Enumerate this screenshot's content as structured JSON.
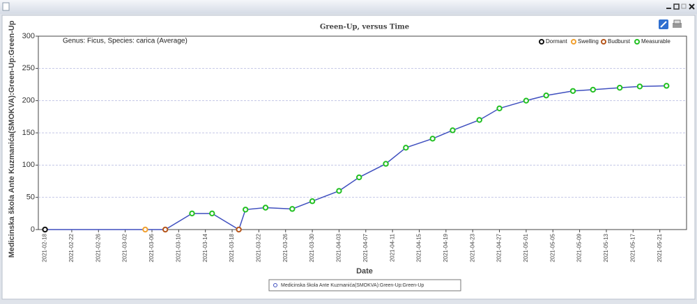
{
  "chart_data": {
    "type": "line",
    "title": "Green-Up, versus Time",
    "annotation": "Genus: Ficus, Species: carica (Average)",
    "x_label": "Date",
    "y_label": "Medicinska škola Ante Kuzmanića(SMOKVA):Green-Up:Green-Up",
    "phases": [
      {
        "name": "Dormant",
        "color": "#111111"
      },
      {
        "name": "Swelling",
        "color": "#f0a030"
      },
      {
        "name": "Budburst",
        "color": "#b5561c"
      },
      {
        "name": "Measurable",
        "color": "#22c022"
      }
    ],
    "x": [
      "2021-02-18",
      "2021-03-05",
      "2021-03-08",
      "2021-03-12",
      "2021-03-15",
      "2021-03-19",
      "2021-03-20",
      "2021-03-23",
      "2021-03-27",
      "2021-03-30",
      "2021-04-03",
      "2021-04-06",
      "2021-04-10",
      "2021-04-13",
      "2021-04-17",
      "2021-04-20",
      "2021-04-24",
      "2021-04-27",
      "2021-05-01",
      "2021-05-04",
      "2021-05-08",
      "2021-05-11",
      "2021-05-15",
      "2021-05-18",
      "2021-05-22"
    ],
    "point_phases": [
      "Dormant",
      "Swelling",
      "Budburst",
      "Measurable",
      "Measurable",
      "Budburst",
      "Measurable",
      "Measurable",
      "Measurable",
      "Measurable",
      "Measurable",
      "Measurable",
      "Measurable",
      "Measurable",
      "Measurable",
      "Measurable",
      "Measurable",
      "Measurable",
      "Measurable",
      "Measurable",
      "Measurable",
      "Measurable",
      "Measurable",
      "Measurable",
      "Measurable"
    ],
    "series": [
      {
        "name": "Medicinska škola Ante Kuzmanića(SMOKVA):Green-Up:Green-Up",
        "color": "#3f4fbf",
        "values": [
          0,
          0,
          0,
          25,
          25,
          0,
          31,
          34,
          32,
          44,
          60,
          81,
          102,
          127,
          141,
          154,
          170,
          188,
          200,
          208,
          215,
          217,
          220,
          222,
          223
        ]
      }
    ],
    "xlim": [
      "2021-02-17",
      "2021-05-25"
    ],
    "xticks": [
      "2021-02-18",
      "2021-02-22",
      "2021-02-26",
      "2021-03-02",
      "2021-03-06",
      "2021-03-10",
      "2021-03-14",
      "2021-03-18",
      "2021-03-22",
      "2021-03-26",
      "2021-03-30",
      "2021-04-03",
      "2021-04-07",
      "2021-04-11",
      "2021-04-15",
      "2021-04-19",
      "2021-04-23",
      "2021-04-27",
      "2021-05-01",
      "2021-05-05",
      "2021-05-09",
      "2021-05-13",
      "2021-05-17",
      "2021-05-21"
    ],
    "ylim": [
      0,
      300
    ],
    "yticks": [
      0,
      50,
      100,
      150,
      200,
      250,
      300
    ],
    "grid": true
  }
}
